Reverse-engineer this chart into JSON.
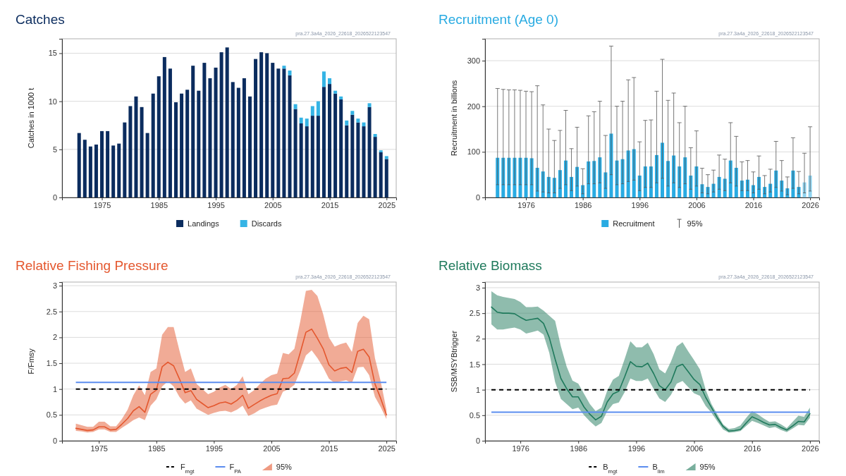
{
  "chart_data": [
    {
      "type": "bar",
      "title": "Catches",
      "ylabel": "Catches in 1000 t",
      "stacked": true,
      "legend": "bottom",
      "grid": "y",
      "annotations": [
        "pra.27.3a4a_2026_22618_2026522123547"
      ],
      "x": [
        1971,
        1972,
        1973,
        1974,
        1975,
        1976,
        1977,
        1978,
        1979,
        1980,
        1981,
        1982,
        1983,
        1984,
        1985,
        1986,
        1987,
        1988,
        1989,
        1990,
        1991,
        1992,
        1993,
        1994,
        1995,
        1996,
        1997,
        1998,
        1999,
        2000,
        2001,
        2002,
        2003,
        2004,
        2005,
        2006,
        2007,
        2008,
        2009,
        2010,
        2011,
        2012,
        2013,
        2014,
        2015,
        2016,
        2017,
        2018,
        2019,
        2020,
        2021,
        2022,
        2023,
        2024,
        2025
      ],
      "xlim": [
        1968,
        2026.7
      ],
      "xticks": [
        1975,
        1985,
        1995,
        2005,
        2015,
        2025
      ],
      "ylim": [
        0,
        16.5
      ],
      "yticks": [
        0,
        5,
        10,
        15
      ],
      "series": [
        {
          "name": "Landings",
          "color": "#0b2c5e",
          "values": [
            6.7,
            6.0,
            5.3,
            5.5,
            6.9,
            6.9,
            5.4,
            5.6,
            7.8,
            9.5,
            10.5,
            9.4,
            6.7,
            10.8,
            12.6,
            14.6,
            13.4,
            9.9,
            10.8,
            11.2,
            13.7,
            11.1,
            14.0,
            12.4,
            13.5,
            15.1,
            15.6,
            12.0,
            11.4,
            12.4,
            10.5,
            14.4,
            15.1,
            15.0,
            14.0,
            13.4,
            13.4,
            12.7,
            9.2,
            7.7,
            7.4,
            8.5,
            8.5,
            11.5,
            11.8,
            10.8,
            10.2,
            7.5,
            8.6,
            7.8,
            7.4,
            9.4,
            6.3,
            4.7,
            4.0
          ]
        },
        {
          "name": "Discards",
          "color": "#35b4e5",
          "values": [
            null,
            null,
            null,
            null,
            null,
            null,
            null,
            null,
            null,
            null,
            null,
            null,
            null,
            null,
            null,
            null,
            null,
            null,
            null,
            null,
            null,
            null,
            null,
            null,
            null,
            null,
            null,
            null,
            null,
            null,
            null,
            null,
            null,
            null,
            null,
            null,
            0.3,
            0.5,
            0.5,
            0.6,
            0.8,
            1.0,
            1.5,
            1.6,
            0.6,
            0.3,
            0.3,
            0.5,
            0.4,
            0.4,
            0.4,
            0.4,
            0.3,
            0.2,
            0.3
          ]
        }
      ]
    },
    {
      "type": "bar",
      "title": "Recruitment (Age 0)",
      "ylabel": "Recruitment in billions",
      "legend": "bottom",
      "grid": "y",
      "annotations": [
        "pra.27.3a4a_2026_22618_2026522123547",
        "95%"
      ],
      "x": [
        1971,
        1972,
        1973,
        1974,
        1975,
        1976,
        1977,
        1978,
        1979,
        1980,
        1981,
        1982,
        1983,
        1984,
        1985,
        1986,
        1987,
        1988,
        1989,
        1990,
        1991,
        1992,
        1993,
        1994,
        1995,
        1996,
        1997,
        1998,
        1999,
        2000,
        2001,
        2002,
        2003,
        2004,
        2005,
        2006,
        2007,
        2008,
        2009,
        2010,
        2011,
        2012,
        2013,
        2014,
        2015,
        2016,
        2017,
        2018,
        2019,
        2020,
        2021,
        2022,
        2023,
        2024,
        2025,
        2026
      ],
      "xlim": [
        1968.8,
        2027.6
      ],
      "xticks": [
        1976,
        1986,
        1996,
        2006,
        2016,
        2026
      ],
      "ylim": [
        0,
        348
      ],
      "yticks": [
        0,
        100,
        200,
        300
      ],
      "series": [
        {
          "name": "Recruitment",
          "color": "#29abe2",
          "colors": [
            "#29abe2",
            "#29abe2",
            "#29abe2",
            "#29abe2",
            "#29abe2",
            "#29abe2",
            "#29abe2",
            "#29abe2",
            "#29abe2",
            "#29abe2",
            "#29abe2",
            "#29abe2",
            "#29abe2",
            "#29abe2",
            "#29abe2",
            "#29abe2",
            "#29abe2",
            "#29abe2",
            "#29abe2",
            "#29abe2",
            "#29abe2",
            "#29abe2",
            "#29abe2",
            "#29abe2",
            "#29abe2",
            "#29abe2",
            "#29abe2",
            "#29abe2",
            "#29abe2",
            "#29abe2",
            "#29abe2",
            "#29abe2",
            "#29abe2",
            "#29abe2",
            "#29abe2",
            "#29abe2",
            "#29abe2",
            "#29abe2",
            "#29abe2",
            "#29abe2",
            "#29abe2",
            "#29abe2",
            "#29abe2",
            "#29abe2",
            "#29abe2",
            "#29abe2",
            "#29abe2",
            "#29abe2",
            "#29abe2",
            "#29abe2",
            "#29abe2",
            "#29abe2",
            "#29abe2",
            "#29abe2",
            "#8fd3ef",
            "#8fd3ef"
          ],
          "values": [
            87,
            87,
            87,
            87,
            87,
            87,
            86,
            65,
            57,
            45,
            43,
            60,
            81,
            45,
            67,
            27,
            79,
            80,
            88,
            55,
            140,
            81,
            84,
            103,
            106,
            48,
            68,
            68,
            93,
            120,
            80,
            92,
            68,
            88,
            48,
            68,
            29,
            23,
            30,
            45,
            41,
            81,
            65,
            37,
            39,
            27,
            45,
            23,
            30,
            59,
            37,
            20,
            59,
            23,
            33,
            48
          ],
          "errors": [
            [
              28,
              239
            ],
            [
              28,
              237
            ],
            [
              28,
              236
            ],
            [
              28,
              236
            ],
            [
              28,
              235
            ],
            [
              28,
              233
            ],
            [
              28,
              232
            ],
            [
              14,
              245
            ],
            [
              12,
              203
            ],
            [
              10,
              150
            ],
            [
              10,
              125
            ],
            [
              20,
              147
            ],
            [
              28,
              191
            ],
            [
              15,
              107
            ],
            [
              25,
              154
            ],
            [
              8,
              63
            ],
            [
              30,
              179
            ],
            [
              30,
              188
            ],
            [
              32,
              211
            ],
            [
              20,
              136
            ],
            [
              50,
              332
            ],
            [
              28,
              200
            ],
            [
              30,
              211
            ],
            [
              35,
              258
            ],
            [
              38,
              263
            ],
            [
              15,
              122
            ],
            [
              22,
              169
            ],
            [
              22,
              170
            ],
            [
              32,
              233
            ],
            [
              42,
              303
            ],
            [
              25,
              213
            ],
            [
              32,
              229
            ],
            [
              22,
              164
            ],
            [
              30,
              200
            ],
            [
              18,
              109
            ],
            [
              25,
              146
            ],
            [
              10,
              64
            ],
            [
              8,
              50
            ],
            [
              12,
              60
            ],
            [
              18,
              93
            ],
            [
              15,
              84
            ],
            [
              32,
              164
            ],
            [
              25,
              134
            ],
            [
              15,
              78
            ],
            [
              15,
              81
            ],
            [
              10,
              56
            ],
            [
              18,
              91
            ],
            [
              8,
              48
            ],
            [
              12,
              62
            ],
            [
              22,
              123
            ],
            [
              14,
              81
            ],
            [
              6,
              45
            ],
            [
              20,
              131
            ],
            [
              8,
              57
            ],
            [
              10,
              97
            ],
            [
              14,
              155
            ]
          ]
        }
      ]
    },
    {
      "type": "line",
      "title": "Relative Fishing Pressure",
      "ylabel": "F/Fmsy",
      "legend": "bottom",
      "grid": "y",
      "marker": "none",
      "line_style": "solid",
      "annotations": [
        "pra.27.3a4a_2026_22618_2026522123547",
        "95%"
      ],
      "x": [
        1971,
        1972,
        1973,
        1974,
        1975,
        1976,
        1977,
        1978,
        1979,
        1980,
        1981,
        1982,
        1983,
        1984,
        1985,
        1986,
        1987,
        1988,
        1989,
        1990,
        1991,
        1992,
        1993,
        1994,
        1995,
        1996,
        1997,
        1998,
        1999,
        2000,
        2001,
        2002,
        2003,
        2004,
        2005,
        2006,
        2007,
        2008,
        2009,
        2010,
        2011,
        2012,
        2013,
        2014,
        2015,
        2016,
        2017,
        2018,
        2019,
        2020,
        2021,
        2022,
        2023,
        2024,
        2025
      ],
      "xlim": [
        1968.6,
        2026.7
      ],
      "xticks": [
        1975,
        1985,
        1995,
        2005,
        2015,
        2025
      ],
      "ylim": [
        0,
        3.07
      ],
      "yticks": [
        0,
        0.5,
        1,
        1.5,
        2,
        2.5,
        3
      ],
      "ref_lines": [
        {
          "axis": "y",
          "value": 1,
          "label": "F$_{mgt}$",
          "color": "#000000",
          "line_style": "dashed"
        },
        {
          "axis": "y",
          "value": 1.13,
          "label": "F$_{PA}$",
          "color": "#5b8def",
          "line_style": "solid"
        }
      ],
      "series": [
        {
          "color": "#e4572e",
          "values": [
            0.24,
            0.22,
            0.2,
            0.21,
            0.27,
            0.27,
            0.21,
            0.22,
            0.32,
            0.43,
            0.58,
            0.66,
            0.55,
            0.9,
            0.98,
            1.43,
            1.52,
            1.45,
            1.2,
            0.93,
            0.97,
            0.8,
            0.72,
            0.64,
            0.68,
            0.73,
            0.75,
            0.71,
            0.78,
            0.88,
            0.63,
            0.7,
            0.77,
            0.83,
            0.88,
            0.91,
            1.2,
            1.21,
            1.31,
            1.7,
            2.1,
            2.16,
            1.98,
            1.78,
            1.47,
            1.35,
            1.4,
            1.42,
            1.32,
            1.73,
            1.77,
            1.62,
            1.1,
            0.82,
            0.5
          ],
          "lower": [
            0.19,
            0.18,
            0.16,
            0.17,
            0.22,
            0.22,
            0.17,
            0.17,
            0.25,
            0.32,
            0.4,
            0.45,
            0.4,
            0.68,
            0.8,
            1.05,
            1.15,
            1.05,
            0.85,
            0.72,
            0.78,
            0.62,
            0.56,
            0.5,
            0.54,
            0.57,
            0.58,
            0.55,
            0.6,
            0.68,
            0.48,
            0.53,
            0.6,
            0.64,
            0.68,
            0.7,
            0.95,
            1.0,
            1.08,
            1.35,
            1.65,
            1.75,
            1.6,
            1.42,
            1.2,
            1.12,
            1.15,
            1.17,
            1.12,
            1.42,
            1.43,
            1.27,
            0.85,
            0.65,
            0.42
          ],
          "upper": [
            0.33,
            0.3,
            0.27,
            0.27,
            0.37,
            0.37,
            0.28,
            0.28,
            0.42,
            0.6,
            0.88,
            1.07,
            0.88,
            1.33,
            1.4,
            2.05,
            2.2,
            2.2,
            1.75,
            1.33,
            1.4,
            1.1,
            1.0,
            0.9,
            0.95,
            1.03,
            1.08,
            1.0,
            1.08,
            1.25,
            0.9,
            0.98,
            1.1,
            1.2,
            1.27,
            1.3,
            1.7,
            1.67,
            1.78,
            2.3,
            2.9,
            2.92,
            2.8,
            2.45,
            2.0,
            1.82,
            1.87,
            1.9,
            1.72,
            2.28,
            2.42,
            2.35,
            1.6,
            1.15,
            0.6
          ]
        }
      ]
    },
    {
      "type": "line",
      "title": "Relative Biomass",
      "ylabel": "SSB/MSYBtrigger",
      "legend": "bottom",
      "grid": "y",
      "marker": "none",
      "line_style": "solid",
      "annotations": [
        "pra.27.3a4a_2026_22618_2026522123547",
        "95%"
      ],
      "x": [
        1971,
        1972,
        1973,
        1974,
        1975,
        1976,
        1977,
        1978,
        1979,
        1980,
        1981,
        1982,
        1983,
        1984,
        1985,
        1986,
        1987,
        1988,
        1989,
        1990,
        1991,
        1992,
        1993,
        1994,
        1995,
        1996,
        1997,
        1998,
        1999,
        2000,
        2001,
        2002,
        2003,
        2004,
        2005,
        2006,
        2007,
        2008,
        2009,
        2010,
        2011,
        2012,
        2013,
        2014,
        2015,
        2016,
        2017,
        2018,
        2019,
        2020,
        2021,
        2022,
        2023,
        2024,
        2025,
        2026
      ],
      "xlim": [
        1969.9,
        2027.6
      ],
      "xticks": [
        1976,
        1986,
        1996,
        2006,
        2016,
        2026
      ],
      "ylim": [
        0,
        3.11
      ],
      "yticks": [
        0,
        0.5,
        1,
        1.5,
        2,
        2.5,
        3
      ],
      "ref_lines": [
        {
          "axis": "y",
          "value": 1,
          "label": "B$_{mgt}$",
          "color": "#000000",
          "line_style": "dashed"
        },
        {
          "axis": "y",
          "value": 0.56,
          "label": "B$_{lim}$",
          "color": "#5b8def",
          "line_style": "solid"
        }
      ],
      "series": [
        {
          "color": "#1f7a5c",
          "values": [
            2.62,
            2.52,
            2.5,
            2.5,
            2.49,
            2.42,
            2.36,
            2.38,
            2.4,
            2.3,
            2.02,
            1.6,
            1.22,
            1.02,
            0.86,
            0.86,
            0.66,
            0.52,
            0.41,
            0.48,
            0.76,
            0.92,
            0.97,
            1.25,
            1.55,
            1.46,
            1.45,
            1.52,
            1.32,
            1.08,
            1.0,
            1.15,
            1.45,
            1.5,
            1.35,
            1.2,
            1.1,
            0.85,
            0.65,
            0.45,
            0.28,
            0.19,
            0.2,
            0.22,
            0.35,
            0.47,
            0.42,
            0.36,
            0.31,
            0.32,
            0.26,
            0.21,
            0.29,
            0.38,
            0.37,
            0.53
          ],
          "lower": [
            2.28,
            2.18,
            2.18,
            2.2,
            2.22,
            2.18,
            2.1,
            2.13,
            2.16,
            2.08,
            1.72,
            1.15,
            0.82,
            0.72,
            0.62,
            0.65,
            0.5,
            0.38,
            0.28,
            0.35,
            0.58,
            0.72,
            0.75,
            0.95,
            1.22,
            1.17,
            1.17,
            1.22,
            1.02,
            0.83,
            0.76,
            0.9,
            1.12,
            1.17,
            1.05,
            0.93,
            0.88,
            0.68,
            0.55,
            0.38,
            0.22,
            0.16,
            0.17,
            0.19,
            0.29,
            0.39,
            0.35,
            0.3,
            0.25,
            0.27,
            0.21,
            0.17,
            0.24,
            0.31,
            0.3,
            0.45
          ],
          "upper": [
            2.93,
            2.85,
            2.82,
            2.8,
            2.78,
            2.72,
            2.62,
            2.62,
            2.63,
            2.55,
            2.45,
            2.35,
            1.85,
            1.45,
            1.18,
            1.12,
            0.92,
            0.72,
            0.58,
            0.65,
            0.98,
            1.2,
            1.27,
            1.6,
            1.95,
            1.83,
            1.83,
            1.92,
            1.7,
            1.4,
            1.32,
            1.55,
            1.85,
            1.93,
            1.75,
            1.58,
            1.4,
            1.0,
            0.72,
            0.52,
            0.32,
            0.23,
            0.25,
            0.3,
            0.45,
            0.58,
            0.52,
            0.44,
            0.37,
            0.38,
            0.32,
            0.25,
            0.37,
            0.49,
            0.47,
            0.65
          ]
        }
      ]
    }
  ]
}
